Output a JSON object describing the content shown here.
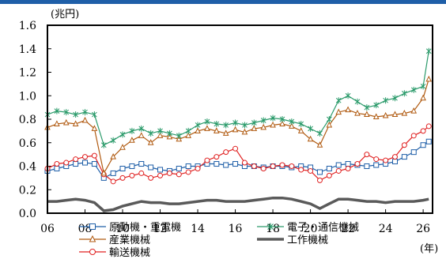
{
  "chart_data": {
    "type": "line",
    "y_unit_label": "(兆円)",
    "x_unit_label": "(年)",
    "ylim": [
      0.0,
      1.6
    ],
    "y_ticks": [
      "1.6",
      "1.4",
      "1.2",
      "1.0",
      "0.8",
      "0.6",
      "0.4",
      "0.2",
      "0.0"
    ],
    "xlim": [
      2006,
      2026.5
    ],
    "x_ticks": [
      "06",
      "08",
      "10",
      "12",
      "14",
      "16",
      "18",
      "20",
      "22",
      "24",
      "26"
    ],
    "grid": false,
    "legend_position": "bottom",
    "x": [
      2006.0,
      2006.5,
      2007.0,
      2007.5,
      2008.0,
      2008.5,
      2009.0,
      2009.5,
      2010.0,
      2010.5,
      2011.0,
      2011.5,
      2012.0,
      2012.5,
      2013.0,
      2013.5,
      2014.0,
      2014.5,
      2015.0,
      2015.5,
      2016.0,
      2016.5,
      2017.0,
      2017.5,
      2018.0,
      2018.5,
      2019.0,
      2019.5,
      2020.0,
      2020.5,
      2021.0,
      2021.5,
      2022.0,
      2022.5,
      2023.0,
      2023.5,
      2024.0,
      2024.5,
      2025.0,
      2025.5,
      2026.0,
      2026.3
    ],
    "series": [
      {
        "name": "原動機・重電機",
        "color": "#1f5fa8",
        "marker": "square",
        "values": [
          0.36,
          0.38,
          0.4,
          0.42,
          0.43,
          0.42,
          0.3,
          0.34,
          0.38,
          0.4,
          0.42,
          0.39,
          0.37,
          0.36,
          0.38,
          0.4,
          0.4,
          0.42,
          0.42,
          0.41,
          0.42,
          0.4,
          0.4,
          0.39,
          0.4,
          0.4,
          0.39,
          0.4,
          0.39,
          0.35,
          0.38,
          0.41,
          0.42,
          0.41,
          0.4,
          0.41,
          0.42,
          0.44,
          0.48,
          0.52,
          0.58,
          0.61
        ]
      },
      {
        "name": "電子・通信機械",
        "color": "#2a9a6a",
        "marker": "star",
        "values": [
          0.84,
          0.87,
          0.86,
          0.84,
          0.86,
          0.84,
          0.58,
          0.62,
          0.67,
          0.7,
          0.72,
          0.68,
          0.7,
          0.68,
          0.66,
          0.7,
          0.75,
          0.78,
          0.76,
          0.75,
          0.77,
          0.75,
          0.77,
          0.79,
          0.81,
          0.8,
          0.78,
          0.76,
          0.72,
          0.68,
          0.8,
          0.96,
          1.0,
          0.95,
          0.9,
          0.92,
          0.96,
          0.98,
          1.02,
          1.05,
          1.08,
          1.38
        ]
      },
      {
        "name": "産業機械",
        "color": "#b05a10",
        "marker": "triangle",
        "values": [
          0.73,
          0.76,
          0.77,
          0.76,
          0.79,
          0.72,
          0.34,
          0.48,
          0.56,
          0.62,
          0.66,
          0.6,
          0.66,
          0.65,
          0.63,
          0.66,
          0.7,
          0.72,
          0.7,
          0.68,
          0.71,
          0.69,
          0.72,
          0.73,
          0.75,
          0.76,
          0.74,
          0.7,
          0.63,
          0.58,
          0.75,
          0.86,
          0.88,
          0.85,
          0.84,
          0.82,
          0.83,
          0.84,
          0.85,
          0.87,
          0.98,
          1.14
        ]
      },
      {
        "name": "工作機械",
        "color": "#5a5a5a",
        "marker": "none",
        "values": [
          0.1,
          0.1,
          0.11,
          0.12,
          0.11,
          0.09,
          0.02,
          0.03,
          0.06,
          0.08,
          0.1,
          0.09,
          0.09,
          0.08,
          0.08,
          0.09,
          0.1,
          0.11,
          0.11,
          0.1,
          0.1,
          0.1,
          0.11,
          0.12,
          0.13,
          0.13,
          0.12,
          0.1,
          0.08,
          0.04,
          0.08,
          0.12,
          0.12,
          0.11,
          0.1,
          0.1,
          0.09,
          0.1,
          0.1,
          0.1,
          0.11,
          0.12
        ]
      },
      {
        "name": "輸送機械",
        "color": "#e02020",
        "marker": "circle",
        "values": [
          0.38,
          0.42,
          0.43,
          0.46,
          0.48,
          0.49,
          0.33,
          0.27,
          0.3,
          0.32,
          0.34,
          0.3,
          0.32,
          0.34,
          0.33,
          0.35,
          0.38,
          0.45,
          0.48,
          0.52,
          0.55,
          0.43,
          0.4,
          0.38,
          0.4,
          0.41,
          0.4,
          0.37,
          0.36,
          0.28,
          0.32,
          0.36,
          0.38,
          0.42,
          0.5,
          0.46,
          0.45,
          0.48,
          0.58,
          0.66,
          0.7,
          0.74
        ]
      }
    ]
  }
}
